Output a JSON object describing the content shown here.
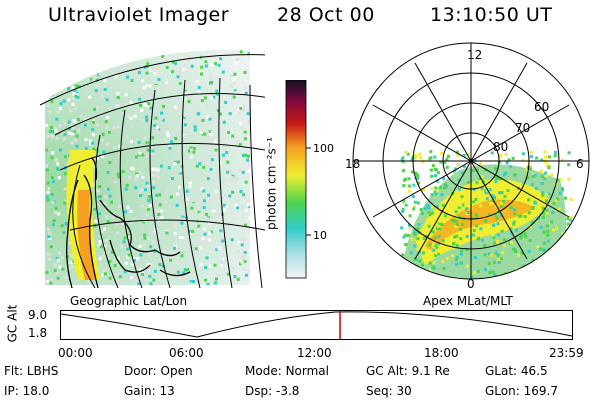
{
  "header": {
    "instrument": "Ultraviolet Imager",
    "date": "28 Oct 00",
    "time": "13:10:50 UT"
  },
  "colorbar": {
    "unit_label": "photon cm⁻²s⁻¹",
    "ticks": [
      {
        "label": "100",
        "value": 100
      },
      {
        "label": "10",
        "value": 10
      }
    ]
  },
  "geo_panel": {
    "caption": "Geographic Lat/Lon"
  },
  "polar_panel": {
    "caption": "Apex MLat/MLT",
    "mlt_labels": {
      "top": "12",
      "left": "18",
      "right": "6",
      "bottom": "0"
    },
    "lat_labels": [
      "60",
      "70",
      "80"
    ]
  },
  "timeline": {
    "axis_title": "GC Alt",
    "y_labels": [
      "9.0",
      "1.8"
    ],
    "x_labels": [
      "00:00",
      "06:00",
      "12:00",
      "18:00",
      "23:59"
    ],
    "marker_time": "13:10"
  },
  "status": {
    "filter": {
      "label": "Flt:",
      "value": "LBHS"
    },
    "ip": {
      "label": "IP:",
      "value": "18.0"
    },
    "door": {
      "label": "Door:",
      "value": "Open"
    },
    "gain": {
      "label": "Gain:",
      "value": "13"
    },
    "mode": {
      "label": "Mode:",
      "value": "Normal"
    },
    "dsp": {
      "label": "Dsp:",
      "value": "-3.8"
    },
    "gc_alt": {
      "label": "GC Alt:",
      "value": "9.1 Re"
    },
    "seq": {
      "label": "Seq:",
      "value": "30"
    },
    "glat": {
      "label": "GLat:",
      "value": "46.5"
    },
    "glon": {
      "label": "GLon:",
      "value": "169.7"
    }
  },
  "colors": {
    "low": "#e0e0e0",
    "cyan": "#33cccc",
    "green": "#4cd44c",
    "yellow": "#f0ee30",
    "orange": "#f5a020",
    "red": "#c81818",
    "dark": "#202020"
  }
}
